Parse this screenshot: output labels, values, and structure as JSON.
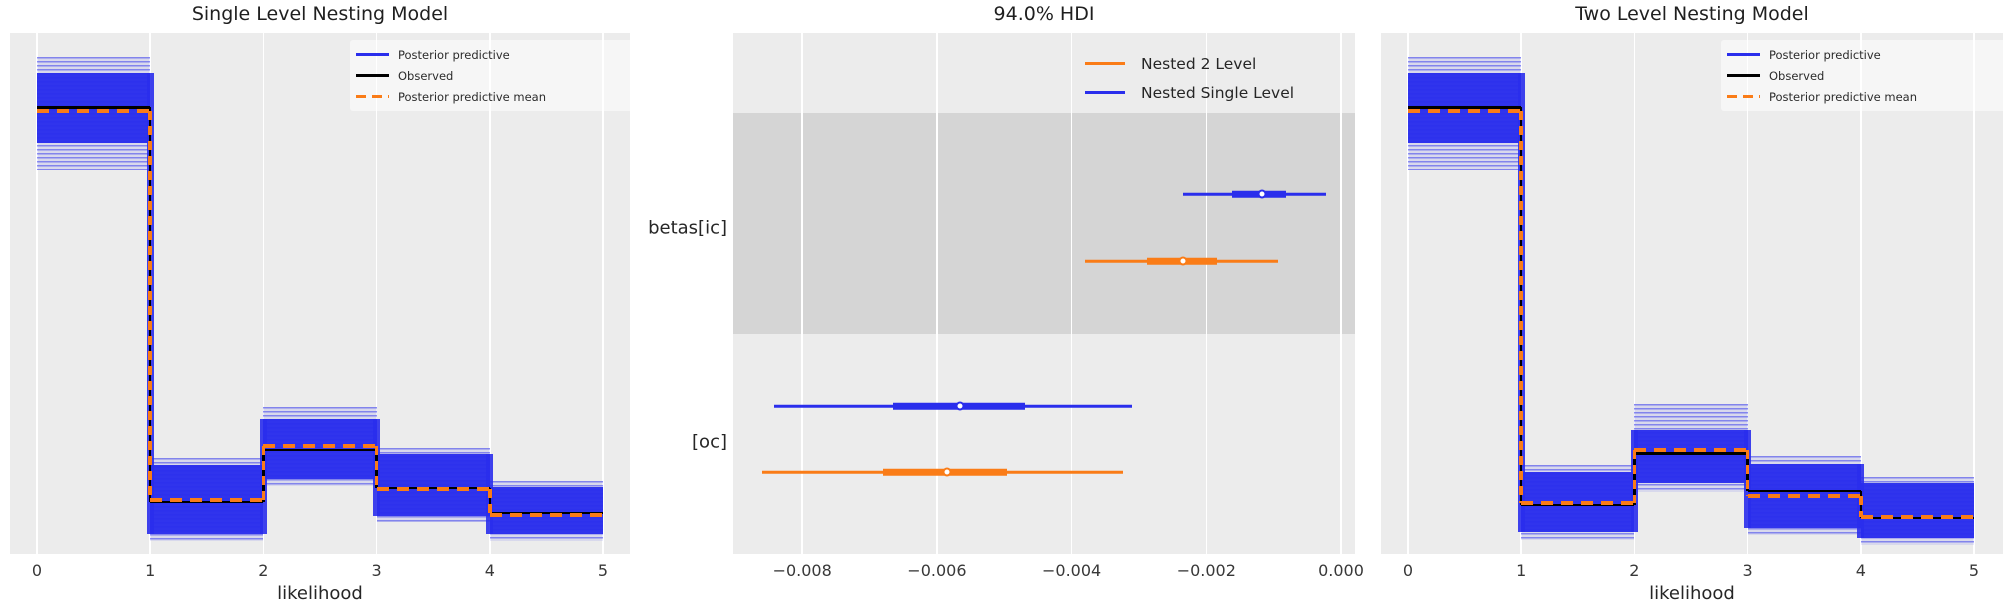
{
  "figure": {
    "background": "#ffffff",
    "panel_background": "#ececec",
    "grid_color": "#ffffff",
    "shaded_row_color": "rgba(0,0,0,0.095)"
  },
  "colors": {
    "posterior_predictive": "#2a2eec",
    "observed": "#000000",
    "posterior_predictive_mean": "#fa7c17",
    "nested_2_level": "#fa7c17",
    "nested_single_level": "#2a2eec"
  },
  "chart_data": [
    {
      "type": "area",
      "subtype": "posterior-predictive-step-histogram",
      "title": "Single Level Nesting Model",
      "xlabel": "likelihood",
      "x_ticks": [
        0,
        1,
        2,
        3,
        4,
        5
      ],
      "bins": [
        [
          0,
          1
        ],
        [
          1,
          2
        ],
        [
          2,
          3
        ],
        [
          3,
          4
        ],
        [
          4,
          5
        ]
      ],
      "ylim": [
        0,
        0.735
      ],
      "grid": "vertical-only",
      "legend": [
        "Posterior predictive",
        "Observed",
        "Posterior predictive mean"
      ],
      "legend_position": "upper right",
      "observed_density": [
        0.63,
        0.073,
        0.147,
        0.093,
        0.058
      ],
      "posterior_predictive_mean_density": [
        0.625,
        0.076,
        0.152,
        0.092,
        0.055
      ],
      "posterior_predictive_band_dense": [
        [
          0.58,
          0.678
        ],
        [
          0.028,
          0.126
        ],
        [
          0.106,
          0.19
        ],
        [
          0.054,
          0.141
        ],
        [
          0.028,
          0.094
        ]
      ],
      "posterior_predictive_band_light": [
        [
          0.542,
          0.701
        ],
        [
          0.018,
          0.135
        ],
        [
          0.096,
          0.207
        ],
        [
          0.045,
          0.15
        ],
        [
          0.018,
          0.103
        ]
      ]
    },
    {
      "type": "scatter",
      "subtype": "forest-plot-hdi",
      "title": "94.0% HDI",
      "x_ticks": [
        {
          "value": -0.008,
          "label": "−0.008"
        },
        {
          "value": -0.006,
          "label": "−0.006"
        },
        {
          "value": -0.004,
          "label": "−0.004"
        },
        {
          "value": -0.002,
          "label": "−0.002"
        },
        {
          "value": 0.0,
          "label": "0.000"
        }
      ],
      "xlim": [
        -0.00903,
        0.00021
      ],
      "grid": "vertical-only",
      "legend": [
        {
          "label": "Nested 2 Level",
          "color": "#fa7c17"
        },
        {
          "label": "Nested Single Level",
          "color": "#2a2eec"
        }
      ],
      "rows": [
        {
          "label": "betas[ic]",
          "shaded": true,
          "series": [
            {
              "name": "Nested Single Level",
              "color": "#2a2eec",
              "hdi_94": [
                -0.00235,
                -0.00022
              ],
              "hdi_50": [
                -0.00162,
                -0.00082
              ],
              "median": -0.00117
            },
            {
              "name": "Nested 2 Level",
              "color": "#fa7c17",
              "hdi_94": [
                -0.0038,
                -0.00094
              ],
              "hdi_50": [
                -0.00288,
                -0.00184
              ],
              "median": -0.00235
            }
          ]
        },
        {
          "label": "[oc]",
          "shaded": false,
          "series": [
            {
              "name": "Nested Single Level",
              "color": "#2a2eec",
              "hdi_94": [
                -0.00842,
                -0.0031
              ],
              "hdi_50": [
                -0.00665,
                -0.00469
              ],
              "median": -0.00566
            },
            {
              "name": "Nested 2 Level",
              "color": "#fa7c17",
              "hdi_94": [
                -0.0086,
                -0.00324
              ],
              "hdi_50": [
                -0.0068,
                -0.00496
              ],
              "median": -0.00585
            }
          ]
        }
      ]
    },
    {
      "type": "area",
      "subtype": "posterior-predictive-step-histogram",
      "title": "Two Level Nesting Model",
      "xlabel": "likelihood",
      "x_ticks": [
        0,
        1,
        2,
        3,
        4,
        5
      ],
      "bins": [
        [
          0,
          1
        ],
        [
          1,
          2
        ],
        [
          2,
          3
        ],
        [
          3,
          4
        ],
        [
          4,
          5
        ]
      ],
      "ylim": [
        0,
        0.735
      ],
      "grid": "vertical-only",
      "legend": [
        "Posterior predictive",
        "Observed",
        "Posterior predictive mean"
      ],
      "legend_position": "upper right",
      "observed_density": [
        0.63,
        0.069,
        0.142,
        0.089,
        0.051
      ],
      "posterior_predictive_mean_density": [
        0.625,
        0.072,
        0.147,
        0.082,
        0.052
      ],
      "posterior_predictive_band_dense": [
        [
          0.58,
          0.678
        ],
        [
          0.031,
          0.116
        ],
        [
          0.1,
          0.175
        ],
        [
          0.037,
          0.127
        ],
        [
          0.023,
          0.1
        ]
      ],
      "posterior_predictive_band_light": [
        [
          0.542,
          0.701
        ],
        [
          0.02,
          0.126
        ],
        [
          0.087,
          0.212
        ],
        [
          0.027,
          0.138
        ],
        [
          0.013,
          0.108
        ]
      ]
    }
  ]
}
